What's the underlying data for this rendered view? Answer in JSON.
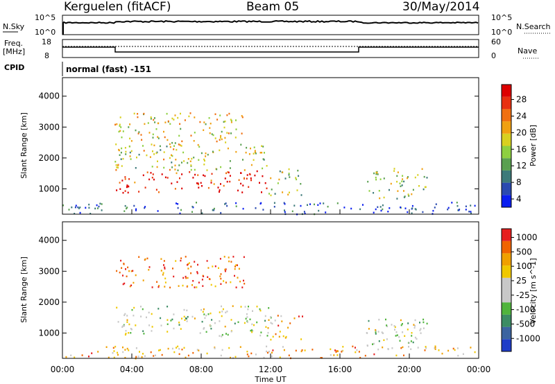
{
  "header": {
    "station": "Kerguelen (fitACF)",
    "beam": "Beam 05",
    "date": "30/May/2014"
  },
  "panels": {
    "nsky": {
      "label": "N.Sky",
      "ticks": [
        "10^5",
        "10^0"
      ],
      "right_ticks": [
        "10^5",
        "10^0"
      ],
      "right_label": "N.Search"
    },
    "freq": {
      "label_line1": "Freq.",
      "label_line2": "[MHz]",
      "ticks": [
        "18",
        "8"
      ],
      "right_ticks": [
        "60",
        "0"
      ],
      "right_label": "Nave"
    },
    "cpid": {
      "label": "CPID",
      "text": "normal (fast) -151"
    }
  },
  "chart_data": [
    {
      "type": "heatmap",
      "name": "power",
      "ylabel": "Slant Range [km]",
      "ylim": [
        180,
        4600
      ],
      "yticks": [
        1000,
        2000,
        3000,
        4000
      ],
      "xlim": [
        0,
        24
      ],
      "colorbar": {
        "label": "Power [dB]",
        "ticks": [
          "28",
          "24",
          "20",
          "16",
          "12",
          "8",
          "4"
        ],
        "colors": [
          "#0a1ef0",
          "#2a4ab0",
          "#3d7a7a",
          "#5aa050",
          "#8ed040",
          "#d8d020",
          "#f0a010",
          "#f07010",
          "#e83010",
          "#dd0000"
        ]
      },
      "regions": [
        {
          "t0": 3.0,
          "t1": 11.8,
          "r0": 900,
          "r1": 1600,
          "level": 0.9
        },
        {
          "t0": 3.0,
          "t1": 11.8,
          "r0": 1600,
          "r1": 2500,
          "level": 0.5
        },
        {
          "t0": 3.0,
          "t1": 10.5,
          "r0": 2500,
          "r1": 3500,
          "level": 0.55
        },
        {
          "t0": 11.8,
          "t1": 13.8,
          "r0": 800,
          "r1": 1700,
          "level": 0.45
        },
        {
          "t0": 17.5,
          "t1": 21.0,
          "r0": 700,
          "r1": 1700,
          "level": 0.45
        },
        {
          "t0": 0.0,
          "t1": 24.0,
          "r0": 200,
          "r1": 600,
          "level": 0.15
        }
      ]
    },
    {
      "type": "heatmap",
      "name": "velocity",
      "ylabel": "Slant Range [km]",
      "ylim": [
        180,
        4600
      ],
      "yticks": [
        1000,
        2000,
        3000,
        4000
      ],
      "xlim": [
        0,
        24
      ],
      "xticks": [
        "00:00",
        "04:00",
        "08:00",
        "12:00",
        "16:00",
        "20:00",
        "00:00"
      ],
      "xlabel": "Time UT",
      "colorbar": {
        "label": "Velocity [m s^-1]",
        "ticks": [
          "1000",
          "500",
          "100",
          "25",
          "-25",
          "-100",
          "-500",
          "-1000"
        ],
        "colors": [
          "#1e3cc8",
          "#3c64a0",
          "#3c8c64",
          "#50b43c",
          "#c8c8c8",
          "#c8c8c8",
          "#f0c800",
          "#f0a000",
          "#f06400",
          "#e61e1e"
        ]
      },
      "regions": [
        {
          "t0": 3.0,
          "t1": 12.0,
          "r0": 900,
          "r1": 1900,
          "level": 0.5
        },
        {
          "t0": 3.0,
          "t1": 10.5,
          "r0": 2500,
          "r1": 3500,
          "level": 0.85
        },
        {
          "t0": 11.8,
          "t1": 13.8,
          "r0": 800,
          "r1": 1600,
          "level": 0.7
        },
        {
          "t0": 17.5,
          "t1": 21.0,
          "r0": 600,
          "r1": 1600,
          "level": 0.5
        },
        {
          "t0": 0.0,
          "t1": 24.0,
          "r0": 200,
          "r1": 600,
          "level": 0.7
        }
      ]
    }
  ]
}
